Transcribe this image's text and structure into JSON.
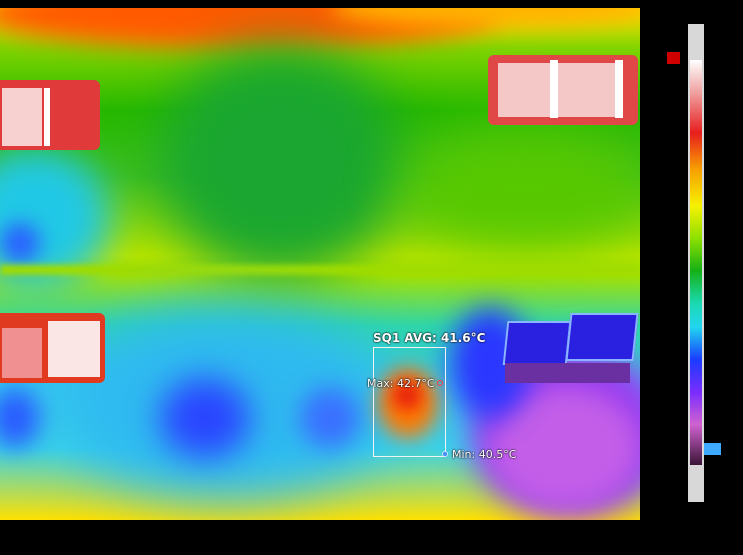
{
  "measurement": {
    "roi_label": "SQ1 AVG: 41.6°C",
    "max_label": "Max: 42.7°C",
    "min_label": "Min: 40.5°C"
  },
  "colors": {
    "max_marker": "#ff3a3a",
    "min_marker": "#3f8cff",
    "roi_border": "#f2f2f2"
  }
}
